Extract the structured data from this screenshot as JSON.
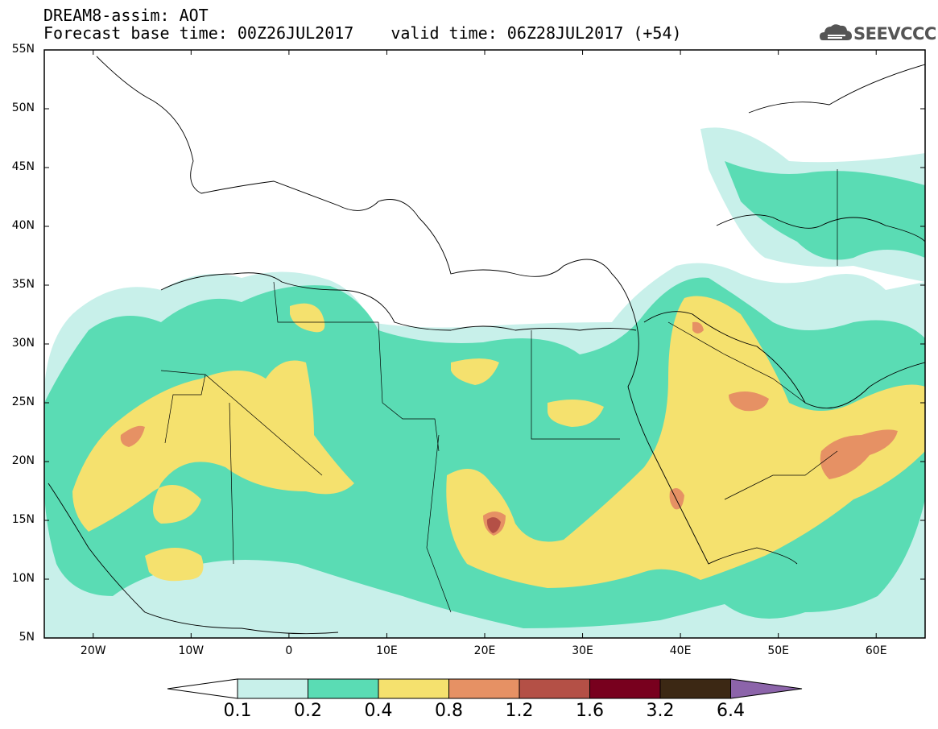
{
  "header": {
    "line1": "DREAM8-assim: AOT",
    "base_time": "Forecast base time: 00Z26JUL2017",
    "valid_time": "valid time: 06Z28JUL2017 (+54)"
  },
  "logo": {
    "text": "SEEVCCC",
    "icon": "cloud-icon"
  },
  "map": {
    "lat_labels": [
      "55N",
      "50N",
      "45N",
      "40N",
      "35N",
      "30N",
      "25N",
      "20N",
      "15N",
      "10N",
      "5N"
    ],
    "lon_labels": [
      "20W",
      "10W",
      "0",
      "10E",
      "20E",
      "30E",
      "40E",
      "50E",
      "60E"
    ],
    "lon_range": [
      -25,
      65
    ],
    "lat_range": [
      5,
      55
    ]
  },
  "colorbar": {
    "levels": [
      "0.1",
      "0.2",
      "0.4",
      "0.8",
      "1.2",
      "1.6",
      "3.2",
      "6.4"
    ],
    "colors": [
      "#c8f0ea",
      "#5adcb4",
      "#f5e16e",
      "#e69164",
      "#b45046",
      "#78001e",
      "#3c2814",
      "#8c64aa"
    ]
  }
}
